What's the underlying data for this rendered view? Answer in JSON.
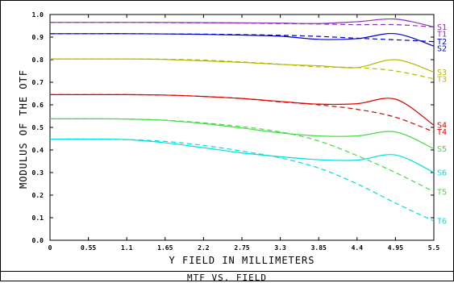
{
  "chart_data": {
    "type": "line",
    "title": "MTF VS. FIELD",
    "xlabel": "Y FIELD IN MILLIMETERS",
    "ylabel": "MODULUS OF THE OTF",
    "xlim": [
      0,
      5.5
    ],
    "ylim": [
      0,
      1.0
    ],
    "x_ticks": [
      "0",
      "0.55",
      "1.1",
      "1.65",
      "2.2",
      "2.75",
      "3.3",
      "3.85",
      "4.4",
      "4.95",
      "5.5"
    ],
    "y_ticks": [
      "0.0",
      "0.1",
      "0.2",
      "0.3",
      "0.4",
      "0.5",
      "0.6",
      "0.7",
      "0.8",
      "0.9",
      "1.0"
    ],
    "x": [
      0,
      0.55,
      1.1,
      1.65,
      2.2,
      2.75,
      3.3,
      3.85,
      4.4,
      4.95,
      5.5
    ],
    "grid": false,
    "series": [
      {
        "name": "S1",
        "color": "#8b2fb8",
        "dash": false,
        "values": [
          0.965,
          0.965,
          0.965,
          0.965,
          0.964,
          0.963,
          0.962,
          0.96,
          0.968,
          0.98,
          0.945
        ]
      },
      {
        "name": "T1",
        "color": "#8b2fb8",
        "dash": true,
        "values": [
          0.965,
          0.965,
          0.965,
          0.964,
          0.963,
          0.962,
          0.96,
          0.958,
          0.955,
          0.955,
          0.945
        ]
      },
      {
        "name": "S2",
        "color": "#0000cc",
        "dash": false,
        "values": [
          0.915,
          0.915,
          0.915,
          0.914,
          0.912,
          0.909,
          0.904,
          0.89,
          0.893,
          0.915,
          0.86
        ]
      },
      {
        "name": "T2",
        "color": "#0000cc",
        "dash": true,
        "values": [
          0.915,
          0.915,
          0.915,
          0.914,
          0.913,
          0.911,
          0.908,
          0.903,
          0.895,
          0.888,
          0.88
        ]
      },
      {
        "name": "S3",
        "color": "#b8b800",
        "dash": false,
        "values": [
          0.803,
          0.803,
          0.803,
          0.801,
          0.795,
          0.788,
          0.779,
          0.773,
          0.765,
          0.8,
          0.745
        ]
      },
      {
        "name": "T3",
        "color": "#b8b800",
        "dash": true,
        "values": [
          0.803,
          0.803,
          0.803,
          0.802,
          0.798,
          0.79,
          0.78,
          0.768,
          0.765,
          0.75,
          0.715
        ]
      },
      {
        "name": "S4",
        "color": "#e00000",
        "dash": false,
        "values": [
          0.645,
          0.645,
          0.645,
          0.643,
          0.637,
          0.628,
          0.615,
          0.603,
          0.605,
          0.625,
          0.51
        ]
      },
      {
        "name": "T4",
        "color": "#e00000",
        "dash": true,
        "values": [
          0.645,
          0.645,
          0.645,
          0.643,
          0.637,
          0.628,
          0.613,
          0.6,
          0.58,
          0.545,
          0.48
        ]
      },
      {
        "name": "S5",
        "color": "#44dd44",
        "dash": false,
        "values": [
          0.538,
          0.538,
          0.537,
          0.531,
          0.517,
          0.497,
          0.476,
          0.462,
          0.462,
          0.48,
          0.405
        ]
      },
      {
        "name": "T5",
        "color": "#44dd44",
        "dash": true,
        "values": [
          0.538,
          0.538,
          0.537,
          0.532,
          0.52,
          0.503,
          0.48,
          0.44,
          0.375,
          0.3,
          0.215
        ]
      },
      {
        "name": "S6",
        "color": "#00e0e0",
        "dash": false,
        "values": [
          0.448,
          0.448,
          0.446,
          0.432,
          0.41,
          0.387,
          0.37,
          0.357,
          0.355,
          0.378,
          0.3
        ]
      },
      {
        "name": "T6",
        "color": "#00e0e0",
        "dash": true,
        "values": [
          0.448,
          0.448,
          0.446,
          0.438,
          0.42,
          0.395,
          0.365,
          0.32,
          0.25,
          0.165,
          0.085
        ]
      }
    ]
  }
}
